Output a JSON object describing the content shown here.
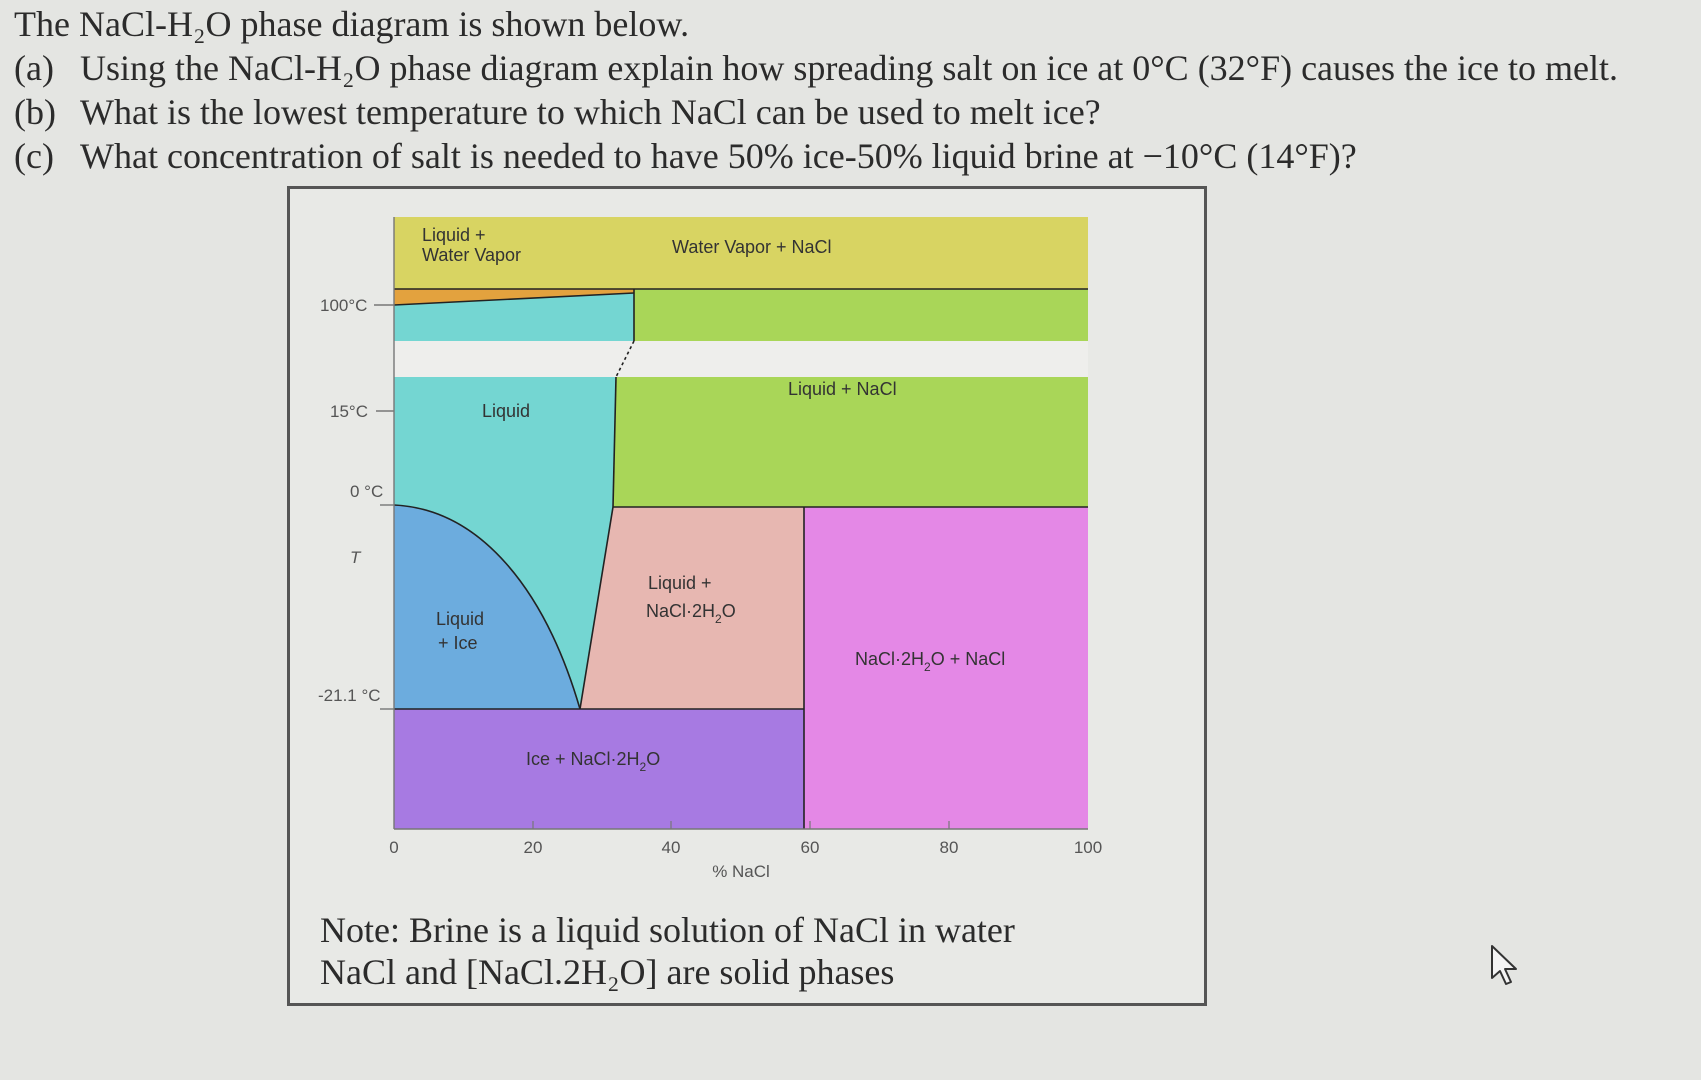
{
  "questions": {
    "intro": "The NaCl-H₂O phase diagram is shown below.",
    "items": [
      {
        "label": "(a)",
        "text": "Using the NaCl-H₂O phase diagram explain how spreading salt on ice at 0°C (32°F) causes the ice to melt."
      },
      {
        "label": "(b)",
        "text": "What is the lowest temperature to which NaCl can be used to melt ice?"
      },
      {
        "label": "(c)",
        "text": "What concentration of salt is needed to have 50% ice-50% liquid brine at −10°C (14°F)?"
      }
    ]
  },
  "diagram": {
    "y_labels": {
      "t100": "100°C",
      "t15": "15°C",
      "t0": "0 °C",
      "tT": "T",
      "t21": "-21.1 °C"
    },
    "x_ticks": [
      "0",
      "20",
      "40",
      "60",
      "80",
      "100"
    ],
    "x_axis_label": "% NaCl",
    "regions": {
      "liquid_vapor_1": "Liquid +",
      "liquid_vapor_2": "Water Vapor",
      "vapor_nacl": "Water Vapor + NaCl",
      "liquid": "Liquid",
      "liquid_nacl": "Liquid + NaCl",
      "liquid_ice_1": "Liquid",
      "liquid_ice_2": "+ Ice",
      "liquid_hydrate_1": "Liquid +",
      "liquid_hydrate_2": "NaCl·2H",
      "liquid_hydrate_sub": "2",
      "liquid_hydrate_3": "O",
      "hydrate_nacl_1": "NaCl·2H",
      "hydrate_nacl_sub": "2",
      "hydrate_nacl_2": "O + NaCl",
      "ice_hydrate_1": "Ice + NaCl·2H",
      "ice_hydrate_sub": "2",
      "ice_hydrate_2": "O"
    },
    "colors": {
      "yellow": "#d8d462",
      "green": "#a9d658",
      "cyan": "#74d6d2",
      "blue": "#6cacde",
      "pink": "#e7b7b1",
      "magenta": "#e488e6",
      "purple": "#a77ae2",
      "orange": "#e3a23e",
      "gap": "#eeeeec"
    }
  },
  "note": {
    "line1": "Note: Brine is a liquid solution of NaCl in water",
    "line2": "NaCl and [NaCl.2H₂O] are solid phases"
  }
}
